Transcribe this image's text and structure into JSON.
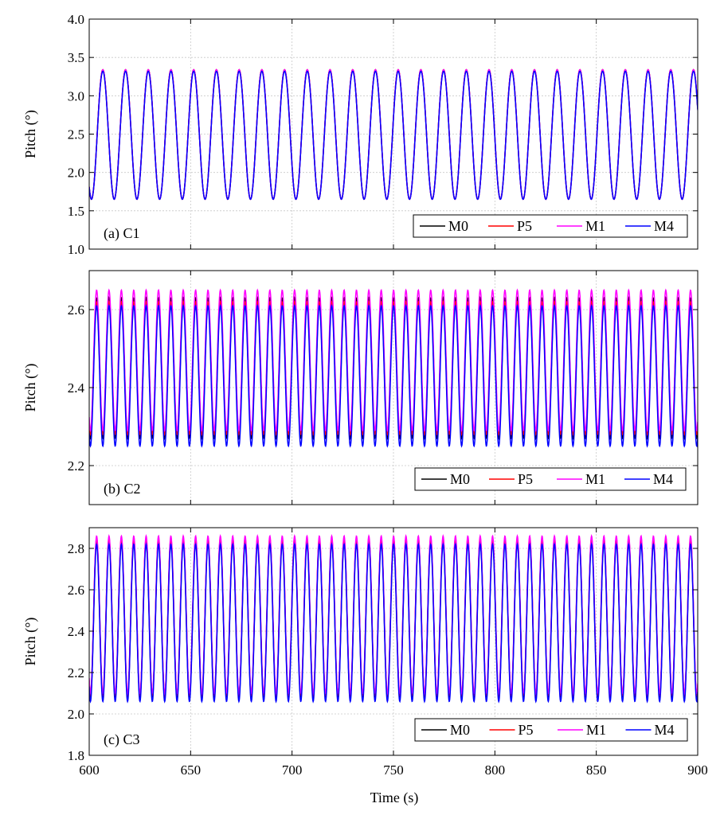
{
  "figure": {
    "xlabel": "Time (s)",
    "x_ticks": [
      "600",
      "650",
      "700",
      "750",
      "800",
      "850",
      "900"
    ]
  },
  "chart_data": [
    {
      "type": "line",
      "panel_label": "(a) C1",
      "ylabel": "Pitch (°)",
      "xlim": [
        600,
        900
      ],
      "ylim": [
        1.0,
        4.0
      ],
      "y_ticks": [
        "1.0",
        "1.5",
        "2.0",
        "2.5",
        "3.0",
        "3.5",
        "4.0"
      ],
      "grid": true,
      "legend_position": "bottom-right",
      "period_s": 11.2,
      "series": [
        {
          "name": "M0",
          "color": "#000000",
          "min": 1.65,
          "max": 3.34
        },
        {
          "name": "P5",
          "color": "#ff0000",
          "min": 1.65,
          "max": 3.34
        },
        {
          "name": "M1",
          "color": "#ff00ff",
          "min": 1.65,
          "max": 3.34
        },
        {
          "name": "M4",
          "color": "#0000ff",
          "min": 1.65,
          "max": 3.32
        }
      ]
    },
    {
      "type": "line",
      "panel_label": "(b) C2",
      "ylabel": "Pitch (°)",
      "xlim": [
        600,
        900
      ],
      "ylim": [
        2.1,
        2.7
      ],
      "y_ticks": [
        "2.2",
        "2.4",
        "2.6"
      ],
      "grid": true,
      "legend_position": "bottom-right",
      "period_s": 6.1,
      "series": [
        {
          "name": "M0",
          "color": "#000000",
          "min": 2.27,
          "max": 2.63
        },
        {
          "name": "P5",
          "color": "#ff0000",
          "min": 2.28,
          "max": 2.62
        },
        {
          "name": "M1",
          "color": "#ff00ff",
          "min": 2.29,
          "max": 2.65
        },
        {
          "name": "M4",
          "color": "#0000ff",
          "min": 2.25,
          "max": 2.61
        }
      ]
    },
    {
      "type": "line",
      "panel_label": "(c) C3",
      "ylabel": "Pitch (°)",
      "xlim": [
        600,
        900
      ],
      "ylim": [
        1.8,
        2.9
      ],
      "y_ticks": [
        "1.8",
        "2.0",
        "2.2",
        "2.4",
        "2.6",
        "2.8"
      ],
      "grid": true,
      "legend_position": "bottom-right",
      "period_s": 6.1,
      "series": [
        {
          "name": "M0",
          "color": "#000000",
          "min": 2.08,
          "max": 2.84
        },
        {
          "name": "P5",
          "color": "#ff0000",
          "min": 2.09,
          "max": 2.85
        },
        {
          "name": "M1",
          "color": "#ff00ff",
          "min": 2.1,
          "max": 2.86
        },
        {
          "name": "M4",
          "color": "#0000ff",
          "min": 2.06,
          "max": 2.82
        }
      ]
    }
  ]
}
